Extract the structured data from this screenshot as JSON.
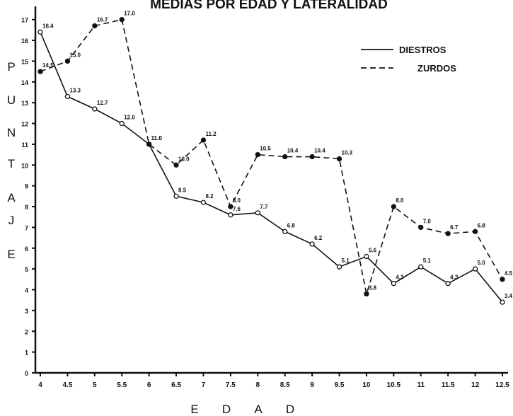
{
  "chart_data": {
    "type": "line",
    "title": "MEDIAS POR EDAD Y LATERALIDAD",
    "x_label": "EDAD",
    "y_label": "PUNTAJE",
    "x": [
      4,
      4.5,
      5,
      5.5,
      6,
      6.5,
      7,
      7.5,
      8,
      8.5,
      9,
      9.5,
      10,
      10.5,
      11,
      11.5,
      12,
      12.5
    ],
    "series": [
      {
        "name": "DIESTROS",
        "color": "#111111",
        "style": "solid",
        "marker": "open",
        "values": [
          16.4,
          13.3,
          12.7,
          12.0,
          11.0,
          8.5,
          8.2,
          7.6,
          7.7,
          6.8,
          6.2,
          5.1,
          5.6,
          4.3,
          5.1,
          4.3,
          5.0,
          3.4
        ],
        "value_labels": [
          "16.4",
          "13.3",
          "12.7",
          "12.0",
          "11.0",
          "8.5",
          "8.2",
          "7.6",
          "7.7",
          "6.8",
          "6.2",
          "5.1",
          "5.6",
          "4.3",
          "5.1",
          "4.3",
          "5.0",
          "3.4"
        ]
      },
      {
        "name": "ZURDOS",
        "color": "#111111",
        "style": "dashed",
        "marker": "filled",
        "values": [
          14.5,
          15.0,
          16.7,
          17.0,
          11.0,
          10.0,
          11.2,
          8.0,
          10.5,
          10.4,
          10.4,
          10.3,
          3.8,
          8.0,
          7.0,
          6.7,
          6.8,
          4.5
        ],
        "value_labels": [
          "14.5",
          "15.0",
          "16.7",
          "17.0",
          "11.0",
          "10.0",
          "11.2",
          "8.0",
          "10.5",
          "10.4",
          "10.4",
          "10.3",
          "3.8",
          "8.0",
          "7.0",
          "6.7",
          "6.8",
          "4.5"
        ]
      }
    ],
    "xlim": [
      4,
      12.5
    ],
    "xticks": [
      4,
      4.5,
      5,
      5.5,
      6,
      6.5,
      7,
      7.5,
      8,
      8.5,
      9,
      9.5,
      10,
      10.5,
      11,
      11.5,
      12,
      12.5
    ],
    "ylim": [
      0,
      17.5
    ],
    "yticks": [
      0,
      1,
      2,
      3,
      4,
      5,
      6,
      7,
      8,
      9,
      10,
      11,
      12,
      13,
      14,
      15,
      16,
      17
    ],
    "grid": false,
    "legend": "upper right"
  }
}
